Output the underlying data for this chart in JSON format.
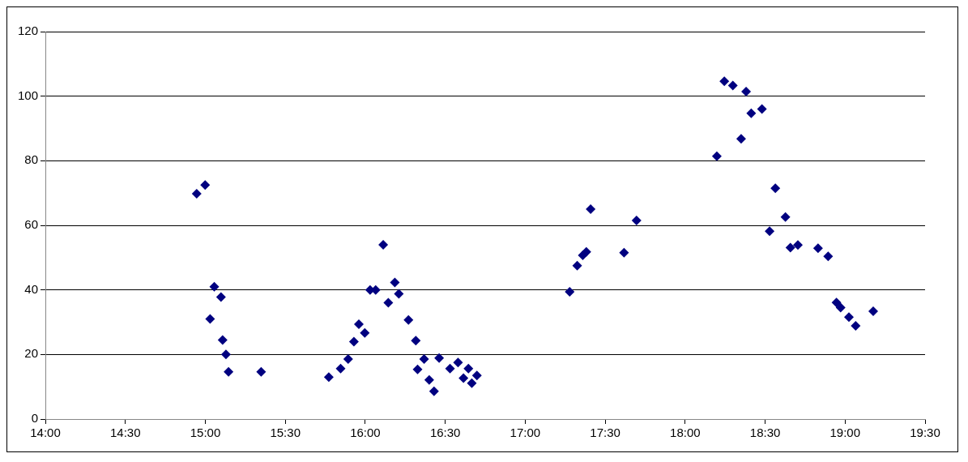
{
  "chart_data": {
    "type": "scatter",
    "marker": "diamond",
    "grid": "y",
    "legend": false,
    "series": [
      {
        "color": "#000080",
        "x": [
          14.946,
          14.999,
          15.03,
          15.056,
          15.098,
          15.108,
          15.129,
          15.145,
          15.349,
          15.772,
          15.846,
          15.893,
          15.929,
          15.96,
          15.997,
          16.03,
          16.065,
          16.112,
          16.144,
          16.185,
          16.21,
          16.27,
          16.316,
          16.327,
          16.368,
          16.4,
          16.43,
          16.462,
          16.53,
          16.58,
          16.614,
          16.645,
          16.666,
          16.698,
          17.278,
          17.325,
          17.36,
          17.382,
          17.409,
          17.618,
          17.696,
          18.198,
          18.245,
          18.298,
          18.35,
          18.381,
          18.413,
          18.48,
          18.528,
          18.564,
          18.627,
          18.658,
          18.705,
          18.831,
          18.894,
          18.946,
          18.972,
          19.024,
          19.066,
          19.176
        ],
        "values": [
          69.8,
          72.5,
          31,
          41,
          37.8,
          24.5,
          20,
          14.6,
          14.6,
          13,
          15.6,
          18.6,
          24,
          29.4,
          26.7,
          40,
          40,
          54,
          36,
          42.3,
          38.8,
          30.7,
          24.3,
          15.4,
          18.6,
          12.1,
          8.6,
          18.9,
          15.6,
          17.5,
          12.7,
          15.6,
          11.1,
          13.5,
          39.4,
          47.5,
          50.7,
          51.8,
          65,
          51.5,
          61.5,
          81.4,
          104.6,
          103.3,
          86.8,
          101.4,
          94.7,
          96,
          58.2,
          71.5,
          62.6,
          53.1,
          53.9,
          52.9,
          50.4,
          36.1,
          34.5,
          31.6,
          28.9,
          33.4
        ]
      }
    ],
    "xlim": [
      14,
      19.5
    ],
    "xticks": [
      {
        "value": 14,
        "label": "14:00"
      },
      {
        "value": 14.5,
        "label": "14:30"
      },
      {
        "value": 15,
        "label": "15:00"
      },
      {
        "value": 15.5,
        "label": "15:30"
      },
      {
        "value": 16,
        "label": "16:00"
      },
      {
        "value": 16.5,
        "label": "16:30"
      },
      {
        "value": 17,
        "label": "17:00"
      },
      {
        "value": 17.5,
        "label": "17:30"
      },
      {
        "value": 18,
        "label": "18:00"
      },
      {
        "value": 18.5,
        "label": "18:30"
      },
      {
        "value": 19,
        "label": "19:00"
      },
      {
        "value": 19.5,
        "label": "19:30"
      }
    ],
    "ylim": [
      0,
      120
    ],
    "yticks": [
      0,
      20,
      40,
      60,
      80,
      100,
      120
    ]
  }
}
